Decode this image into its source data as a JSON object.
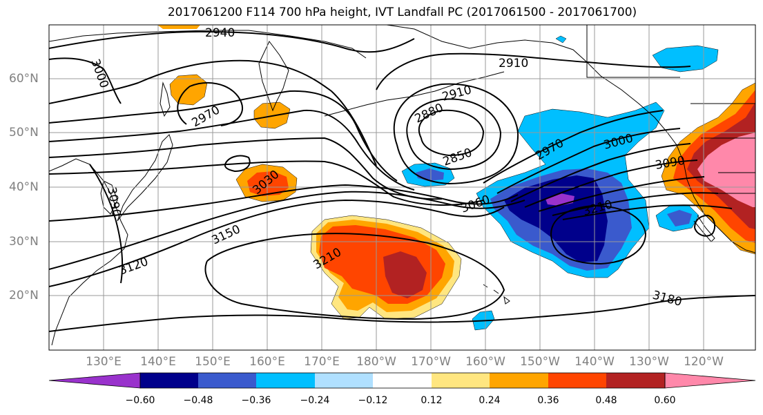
{
  "title": "2017061200 F114 700 hPa height, IVT Landfall PC (2017061500 - 2017061700)",
  "axes": {
    "lat_labels": [
      "20°N",
      "30°N",
      "40°N",
      "50°N",
      "60°N"
    ],
    "lon_labels": [
      "130°E",
      "140°E",
      "150°E",
      "160°E",
      "170°E",
      "180°W",
      "170°W",
      "160°W",
      "150°W",
      "140°W",
      "130°W",
      "120°W"
    ],
    "grid": true
  },
  "contours": {
    "variable": "700 hPa height",
    "color": "#000000",
    "labels": [
      "2940",
      "2910",
      "3000",
      "2970",
      "2910",
      "2880",
      "2850",
      "2970",
      "3000",
      "3090",
      "3030",
      "3090",
      "3060",
      "3210",
      "3150",
      "3120",
      "3210",
      "3180"
    ]
  },
  "shading": {
    "variable": "IVT Landfall PC",
    "colors": {
      "lt_-0.60": "#9932cc",
      "-0.60_-0.48": "#00008b",
      "-0.48_-0.36": "#3a5acd",
      "-0.36_-0.24": "#00bfff",
      "-0.24_-0.12": "#b0e0ff",
      "-0.12_0.12": "#ffffff",
      "0.12_0.24": "#ffe680",
      "0.24_0.36": "#ffa500",
      "0.36_0.48": "#ff4500",
      "0.48_0.60": "#b22222",
      "gt_0.60": "#ff88aa"
    }
  },
  "colorbar": {
    "ticks": [
      "−0.60",
      "−0.48",
      "−0.36",
      "−0.24",
      "−0.12",
      "0.12",
      "0.24",
      "0.36",
      "0.48",
      "0.60"
    ],
    "extend": "both"
  }
}
